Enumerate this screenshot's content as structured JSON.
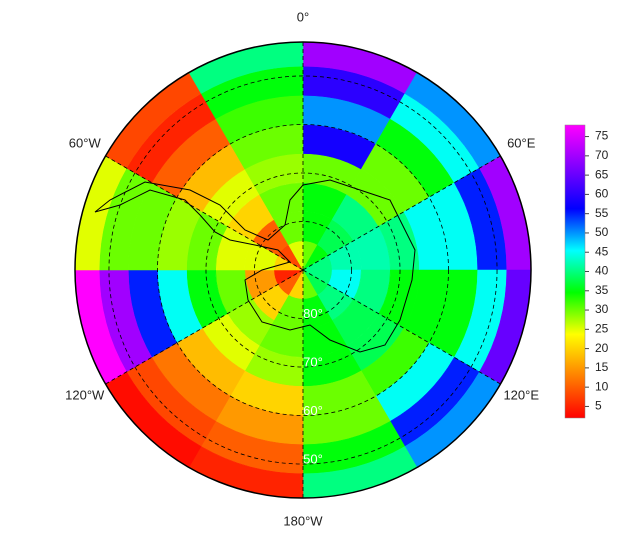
{
  "chart_data": {
    "type": "polar_heatmap",
    "lat_bins": [
      90,
      84,
      78,
      72,
      66,
      60,
      54,
      48,
      43
    ],
    "lon_bins": [
      0,
      30,
      60,
      90,
      120,
      150,
      180,
      210,
      240,
      270,
      300,
      330,
      360
    ],
    "values": [
      [
        30,
        35,
        40,
        40,
        38,
        30,
        20,
        10,
        5,
        20,
        8,
        25
      ],
      [
        35,
        38,
        42,
        45,
        40,
        35,
        30,
        20,
        15,
        25,
        10,
        30
      ],
      [
        35,
        40,
        42,
        40,
        38,
        35,
        30,
        28,
        30,
        25,
        20,
        30
      ],
      [
        30,
        30,
        40,
        35,
        38,
        35,
        28,
        25,
        35,
        30,
        25,
        28
      ],
      [
        58,
        30,
        45,
        35,
        32,
        30,
        20,
        18,
        45,
        28,
        18,
        30
      ],
      [
        50,
        35,
        45,
        35,
        45,
        30,
        15,
        12,
        55,
        30,
        10,
        32
      ],
      [
        60,
        45,
        55,
        45,
        55,
        35,
        10,
        8,
        70,
        30,
        5,
        35
      ],
      [
        70,
        50,
        70,
        65,
        50,
        40,
        5,
        3,
        78,
        25,
        8,
        40
      ]
    ],
    "lon_ticks": [
      {
        "value": 0,
        "label": "0°"
      },
      {
        "value": 60,
        "label": "60°E"
      },
      {
        "value": 120,
        "label": "120°E"
      },
      {
        "value": 180,
        "label": "180°W"
      },
      {
        "value": 240,
        "label": "120°W"
      },
      {
        "value": 300,
        "label": "60°W"
      }
    ],
    "lat_ticks": [
      {
        "value": 80,
        "label": "80°"
      },
      {
        "value": 70,
        "label": "70°"
      },
      {
        "value": 60,
        "label": "60°"
      },
      {
        "value": 50,
        "label": "50°"
      }
    ],
    "colormap": [
      "#ff0000",
      "#ff8000",
      "#ffff00",
      "#00ff00",
      "#00ffff",
      "#0000ff",
      "#8000ff",
      "#ff00ff"
    ],
    "clim": [
      2,
      78
    ],
    "cticks": [
      5,
      10,
      15,
      20,
      25,
      30,
      35,
      40,
      45,
      50,
      55,
      60,
      65,
      70,
      75
    ]
  }
}
